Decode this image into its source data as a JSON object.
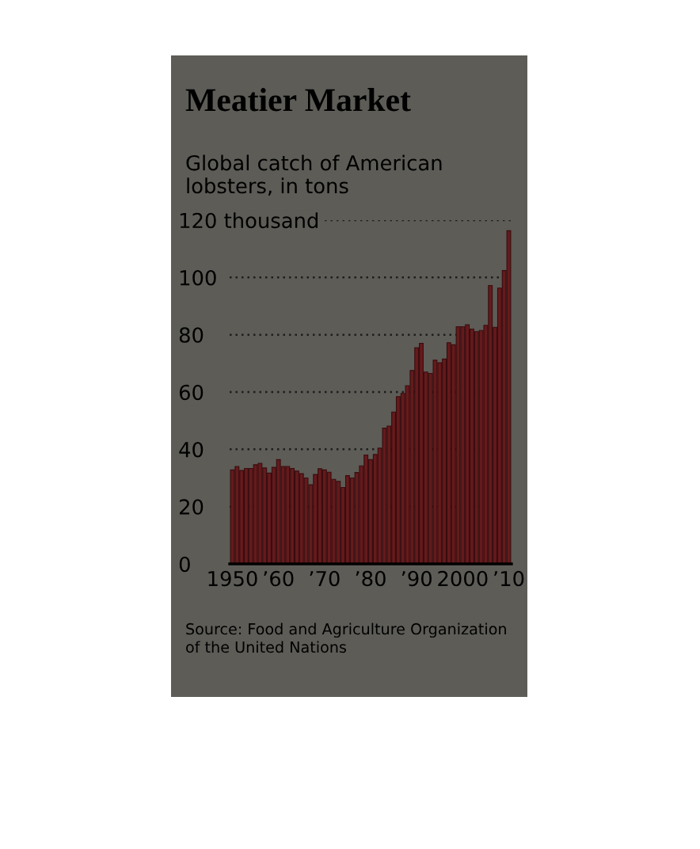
{
  "chart_data": {
    "type": "bar",
    "title": "Meatier Market",
    "subtitle": "Global catch of American\nlobsters, in tons",
    "x": [
      1950,
      1951,
      1952,
      1953,
      1954,
      1955,
      1956,
      1957,
      1958,
      1959,
      1960,
      1961,
      1962,
      1963,
      1964,
      1965,
      1966,
      1967,
      1968,
      1969,
      1970,
      1971,
      1972,
      1973,
      1974,
      1975,
      1976,
      1977,
      1978,
      1979,
      1980,
      1981,
      1982,
      1983,
      1984,
      1985,
      1986,
      1987,
      1988,
      1989,
      1990,
      1991,
      1992,
      1993,
      1994,
      1995,
      1996,
      1997,
      1998,
      1999,
      2000,
      2001,
      2002,
      2003,
      2004,
      2005,
      2006,
      2007,
      2008,
      2009,
      2010
    ],
    "values": [
      32.8,
      34,
      32.6,
      33.3,
      33.3,
      34.6,
      35.1,
      33.5,
      31.7,
      33.7,
      36.4,
      34,
      34,
      33.3,
      32.4,
      31.5,
      30,
      27.6,
      31.2,
      33.2,
      32.8,
      32,
      29.5,
      28.8,
      26.7,
      30.8,
      30,
      31.9,
      34.2,
      38,
      36.4,
      38.2,
      40.4,
      47.4,
      48.1,
      53,
      58.4,
      59.5,
      62.2,
      67.5,
      75.5,
      77,
      67,
      66.5,
      71.1,
      70.2,
      71.5,
      77.2,
      76.5,
      82.8,
      82.8,
      83.5,
      82,
      81.1,
      81.5,
      83.3,
      97.2,
      82.6,
      96.3,
      102.4,
      116.3
    ],
    "color": "#641a1c",
    "xlim": [
      1949.4,
      2010.6
    ],
    "xticks": [
      1950,
      {
        "value": 1960,
        "label": "’60"
      },
      {
        "value": 1970,
        "label": "’70"
      },
      {
        "value": 1980,
        "label": "’80"
      },
      {
        "value": 1990,
        "label": "’90"
      },
      2000,
      {
        "value": 2010,
        "label": "’10"
      }
    ],
    "ylim": [
      0,
      120
    ],
    "yticks": [
      0,
      20,
      40,
      60,
      80,
      100,
      {
        "value": 120,
        "label": "120 thousand"
      }
    ],
    "grid": "y",
    "legend": false,
    "annotations": [
      "Source: Food and Agriculture Organization\nof the United Nations"
    ]
  }
}
